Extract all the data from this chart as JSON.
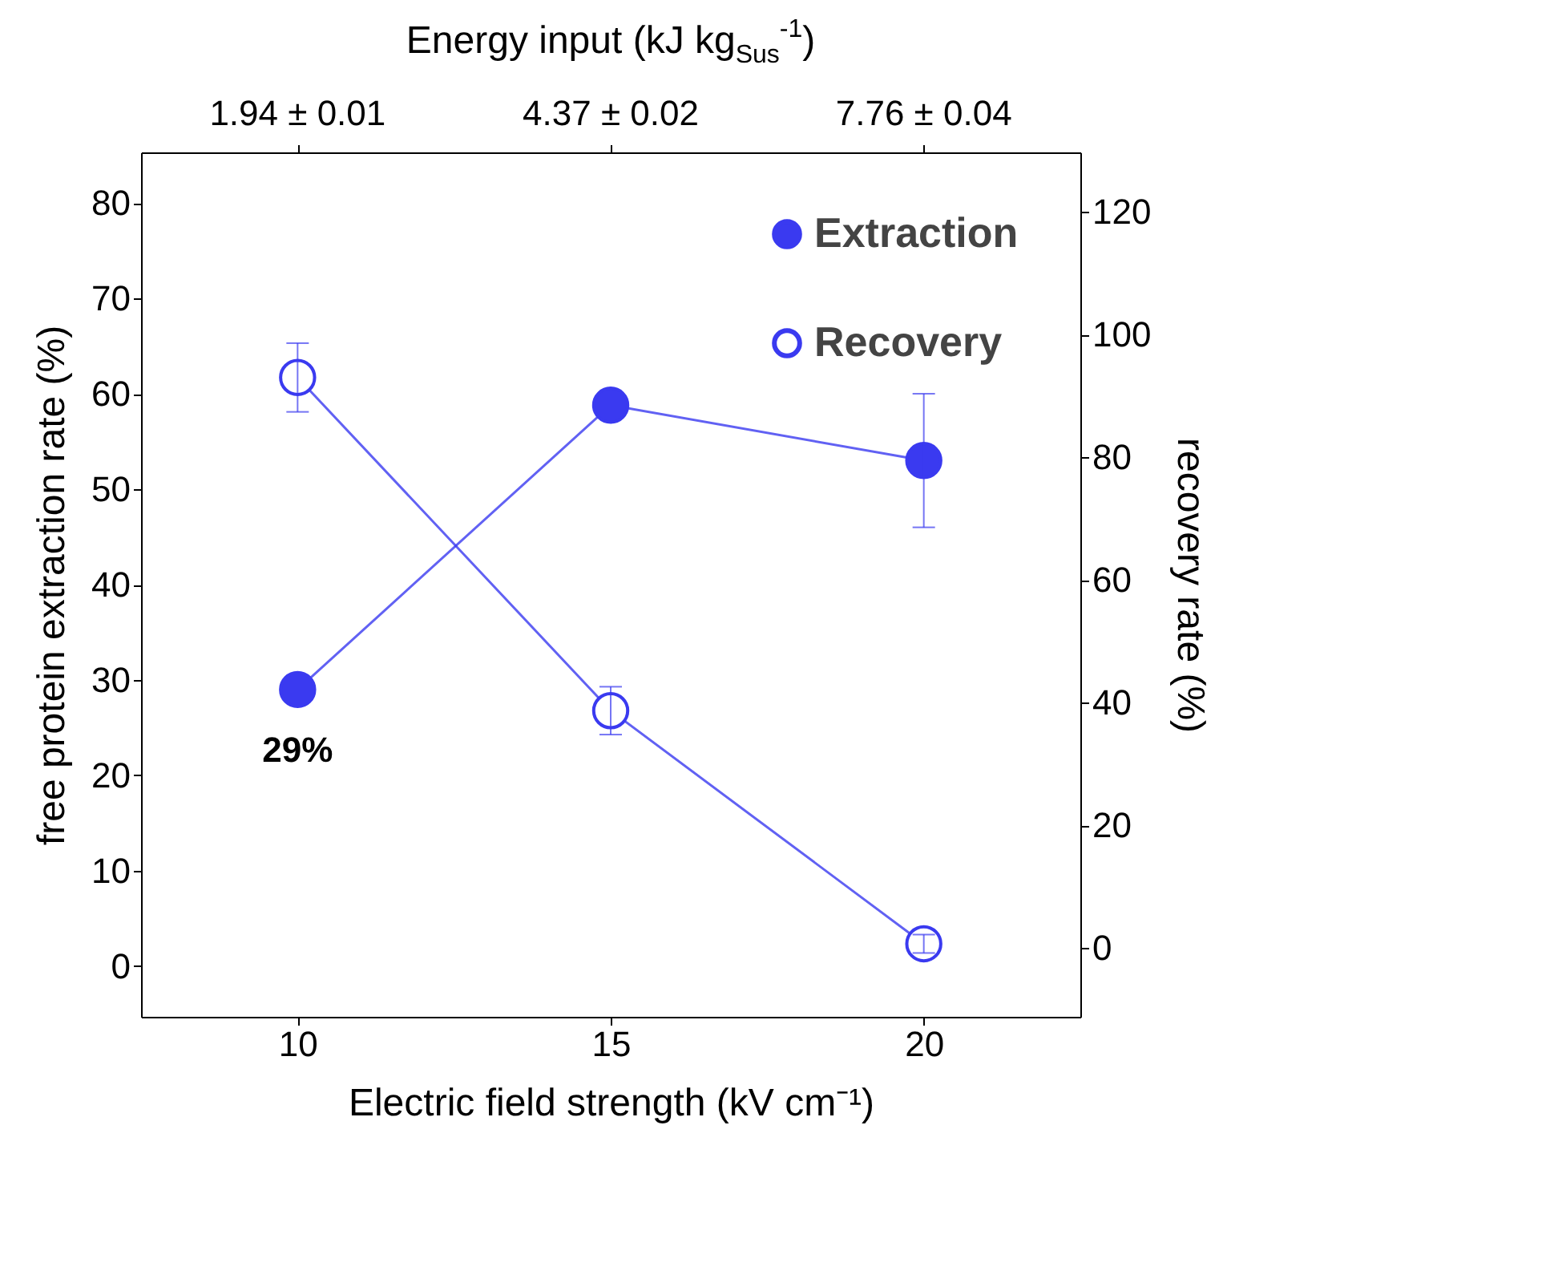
{
  "chart_data": {
    "type": "line",
    "xlabel": "Electric field strength (kV cm⁻¹)",
    "ylabel": "free protein extraction rate (%)",
    "y2label": "recovery rate (%)",
    "x2label": "Energy input (kJ kg$_{Sus}$$^{-1}$)",
    "x": [
      10,
      15,
      20
    ],
    "series": [
      {
        "name": "Extraction",
        "color": "#3a3af0",
        "values": [
          29,
          58.8,
          53
        ],
        "errors": [
          null,
          null,
          7
        ]
      },
      {
        "name": "Recovery",
        "color": "#3a3af0",
        "values": [
          93,
          38.7,
          0.7
        ],
        "errors": [
          5.6,
          3.9,
          1.5
        ],
        "axis": "y2"
      }
    ],
    "xlim": [
      7.5,
      22.5
    ],
    "xticks": [
      10,
      15,
      20
    ],
    "ylim": [
      -5.3,
      85.3
    ],
    "yticks": [
      0,
      10,
      20,
      30,
      40,
      50,
      60,
      70,
      80
    ],
    "y2lim": [
      -11.2,
      129.7
    ],
    "y2ticks": [
      0,
      20,
      40,
      60,
      80,
      100,
      120
    ],
    "annotations": [
      {
        "text": "29%",
        "x": 10,
        "y": 29
      },
      {
        "text": "1.94 ± 0.01",
        "x": 10
      },
      {
        "text": "4.37 ± 0.02",
        "x": 15
      },
      {
        "text": "7.76 ± 0.04",
        "x": 20
      }
    ],
    "marker": "circle",
    "line_style": "solid",
    "grid": false,
    "legend": "top right"
  }
}
